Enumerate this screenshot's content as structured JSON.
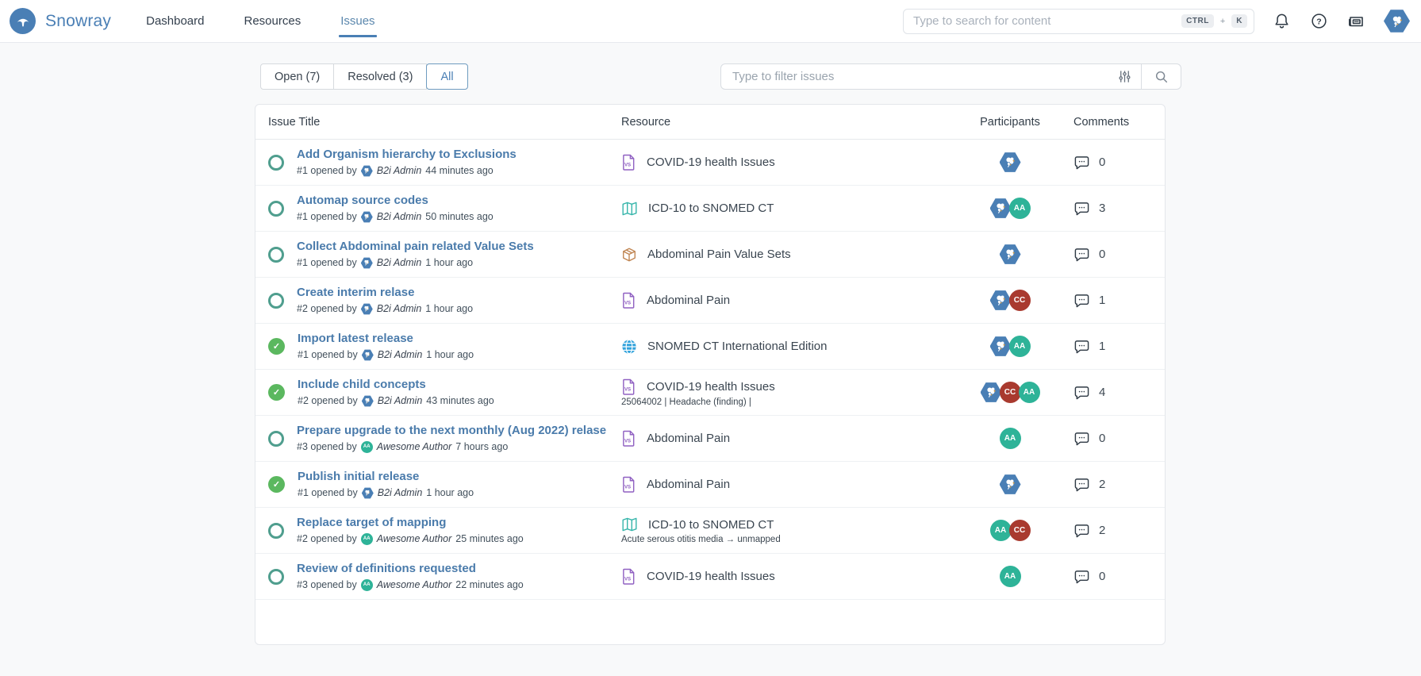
{
  "colors": {
    "accent": "#4a7fb5",
    "page_bg": "#f8f9fa",
    "link_blue": "#4a7bab",
    "open_ring": "#4f9e8e",
    "resolved_green": "#5bb85f",
    "participant_green": "#2eb398",
    "participant_red": "#a93a2f",
    "resource_purple": "#9061c2",
    "resource_teal": "#35b5aa",
    "resource_orange": "#c08552",
    "resource_blue": "#33a3dc"
  },
  "header": {
    "brand": "Snowray",
    "nav": [
      {
        "label": "Dashboard",
        "active": false
      },
      {
        "label": "Resources",
        "active": false
      },
      {
        "label": "Issues",
        "active": true
      }
    ],
    "search": {
      "placeholder": "Type to search for content",
      "shortcut": [
        "CTRL",
        "K"
      ],
      "shortcut_plus": "+"
    },
    "icons": [
      "notifications-bell",
      "help",
      "news",
      "user-avatar"
    ]
  },
  "filters": {
    "tabs": [
      {
        "label": "Open (7)",
        "active": false
      },
      {
        "label": "Resolved (3)",
        "active": false
      },
      {
        "label": "All",
        "active": true
      }
    ],
    "filter_placeholder": "Type to filter issues"
  },
  "participant_kinds": {
    "b2i": {
      "shape": "hexagon",
      "label": ""
    },
    "aa": {
      "shape": "circle",
      "label": "AA",
      "color": "#2eb398"
    },
    "cc": {
      "shape": "circle",
      "label": "CC",
      "color": "#a93a2f"
    }
  },
  "table": {
    "columns": [
      "Issue Title",
      "Resource",
      "Participants",
      "Comments"
    ],
    "rows": [
      {
        "status": "open",
        "title": "Add Organism hierarchy to Exclusions",
        "number": "#1",
        "opened_by_label": "opened by",
        "author": "B2i Admin",
        "author_kind": "b2i",
        "time": "44 minutes ago",
        "resource": {
          "icon": "value-set",
          "name": "COVID-19 health Issues",
          "detail": ""
        },
        "participants": [
          "b2i"
        ],
        "comments": 0
      },
      {
        "status": "open",
        "title": "Automap source codes",
        "number": "#1",
        "opened_by_label": "opened by",
        "author": "B2i Admin",
        "author_kind": "b2i",
        "time": "50 minutes ago",
        "resource": {
          "icon": "map",
          "name": "ICD-10 to SNOMED CT",
          "detail": ""
        },
        "participants": [
          "b2i",
          "aa"
        ],
        "comments": 3
      },
      {
        "status": "open",
        "title": "Collect Abdominal pain related Value Sets",
        "number": "#1",
        "opened_by_label": "opened by",
        "author": "B2i Admin",
        "author_kind": "b2i",
        "time": "1 hour ago",
        "resource": {
          "icon": "package",
          "name": "Abdominal Pain Value Sets",
          "detail": ""
        },
        "participants": [
          "b2i"
        ],
        "comments": 0
      },
      {
        "status": "open",
        "title": "Create interim relase",
        "number": "#2",
        "opened_by_label": "opened by",
        "author": "B2i Admin",
        "author_kind": "b2i",
        "time": "1 hour ago",
        "resource": {
          "icon": "value-set",
          "name": "Abdominal Pain",
          "detail": ""
        },
        "participants": [
          "b2i",
          "cc"
        ],
        "comments": 1
      },
      {
        "status": "resolved",
        "title": "Import latest release",
        "number": "#1",
        "opened_by_label": "opened by",
        "author": "B2i Admin",
        "author_kind": "b2i",
        "time": "1 hour ago",
        "resource": {
          "icon": "globe",
          "name": "SNOMED CT International Edition",
          "detail": ""
        },
        "participants": [
          "b2i",
          "aa"
        ],
        "comments": 1
      },
      {
        "status": "resolved",
        "title": "Include child concepts",
        "number": "#2",
        "opened_by_label": "opened by",
        "author": "B2i Admin",
        "author_kind": "b2i",
        "time": "43 minutes ago",
        "resource": {
          "icon": "value-set",
          "name": "COVID-19 health Issues",
          "detail": "25064002 | Headache (finding) |"
        },
        "participants": [
          "b2i",
          "cc",
          "aa"
        ],
        "comments": 4
      },
      {
        "status": "open",
        "title": "Prepare upgrade to the next monthly (Aug 2022) relase",
        "number": "#3",
        "opened_by_label": "opened by",
        "author": "Awesome Author",
        "author_kind": "aa",
        "time": "7 hours ago",
        "resource": {
          "icon": "value-set",
          "name": "Abdominal Pain",
          "detail": ""
        },
        "participants": [
          "aa"
        ],
        "comments": 0
      },
      {
        "status": "resolved",
        "title": "Publish initial release",
        "number": "#1",
        "opened_by_label": "opened by",
        "author": "B2i Admin",
        "author_kind": "b2i",
        "time": "1 hour ago",
        "resource": {
          "icon": "value-set",
          "name": "Abdominal Pain",
          "detail": ""
        },
        "participants": [
          "b2i"
        ],
        "comments": 2
      },
      {
        "status": "open",
        "title": "Replace target of mapping",
        "number": "#2",
        "opened_by_label": "opened by",
        "author": "Awesome Author",
        "author_kind": "aa",
        "time": "25 minutes ago",
        "resource": {
          "icon": "map",
          "name": "ICD-10 to SNOMED CT",
          "detail": "Acute serous otitis media → unmapped"
        },
        "participants": [
          "aa",
          "cc"
        ],
        "comments": 2
      },
      {
        "status": "open",
        "title": "Review of definitions requested",
        "number": "#3",
        "opened_by_label": "opened by",
        "author": "Awesome Author",
        "author_kind": "aa",
        "time": "22 minutes ago",
        "resource": {
          "icon": "value-set",
          "name": "COVID-19 health Issues",
          "detail": ""
        },
        "participants": [
          "aa"
        ],
        "comments": 0
      }
    ]
  }
}
